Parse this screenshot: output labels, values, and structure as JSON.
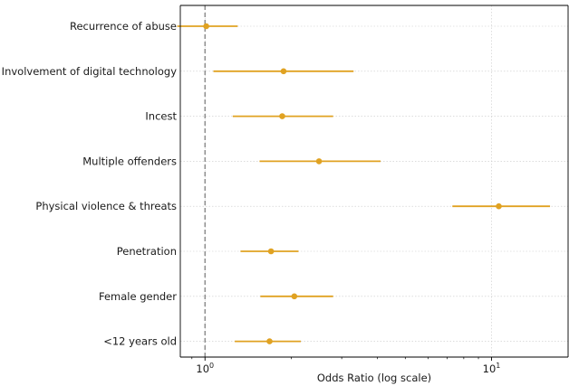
{
  "chart_data": {
    "type": "forest",
    "xlabel": "Odds Ratio (log scale)",
    "ylabel": "",
    "xscale": "log",
    "xlim": [
      0.82,
      18.5
    ],
    "x_tick_labels": [
      {
        "value": 1,
        "base": "10",
        "exp": "0"
      },
      {
        "value": 10,
        "base": "10",
        "exp": "1"
      }
    ],
    "reference_line": {
      "x": 1,
      "style": "dashed"
    },
    "grid": true,
    "marker_color": "#E0A222",
    "rows": [
      {
        "label": "Recurrence of abuse",
        "or": 1.01,
        "ci_low": 0.8,
        "ci_high": 1.3
      },
      {
        "label": "Involvement of digital technology",
        "or": 1.88,
        "ci_low": 1.07,
        "ci_high": 3.3
      },
      {
        "label": "Incest",
        "or": 1.86,
        "ci_low": 1.25,
        "ci_high": 2.8
      },
      {
        "label": "Multiple offenders",
        "or": 2.5,
        "ci_low": 1.55,
        "ci_high": 4.1
      },
      {
        "label": "Physical violence & threats",
        "or": 10.6,
        "ci_low": 7.3,
        "ci_high": 16.0
      },
      {
        "label": "Penetration",
        "or": 1.7,
        "ci_low": 1.33,
        "ci_high": 2.12
      },
      {
        "label": "Female gender",
        "or": 2.05,
        "ci_low": 1.56,
        "ci_high": 2.8
      },
      {
        "label": "<12 years old",
        "or": 1.68,
        "ci_low": 1.27,
        "ci_high": 2.16
      }
    ]
  }
}
